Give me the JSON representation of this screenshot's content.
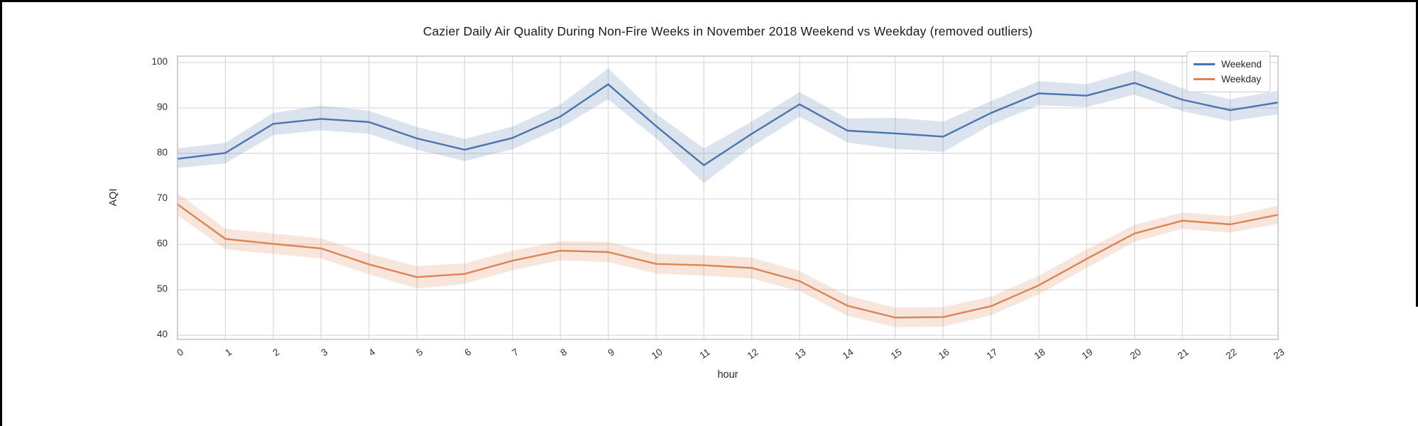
{
  "figure": {
    "background": "#ffffff",
    "frame_color": "#000000"
  },
  "chart_data": {
    "type": "line",
    "title": "Cazier Daily Air Quality During Non-Fire Weeks in November 2018 Weekend vs Weekday (removed outliers)",
    "xlabel": "hour",
    "ylabel": "AQI",
    "grid": true,
    "legend_position": "upper right",
    "x": [
      0,
      1,
      2,
      3,
      4,
      5,
      6,
      7,
      8,
      9,
      10,
      11,
      12,
      13,
      14,
      15,
      16,
      17,
      18,
      19,
      20,
      21,
      22,
      23
    ],
    "yticks": [
      40,
      50,
      60,
      70,
      80,
      90,
      100
    ],
    "ylim": [
      39.1,
      101.4
    ],
    "grid_color": "#dcdcdc",
    "box_color": "#c6c6c6",
    "band_opacity": 0.2,
    "series": [
      {
        "name": "Weekend",
        "color": "#4c72b0",
        "values": [
          78.8,
          80.1,
          86.5,
          87.6,
          86.9,
          83.3,
          80.8,
          83.4,
          88.1,
          95.2,
          86.0,
          77.4,
          84.3,
          90.8,
          85.0,
          84.4,
          83.7,
          88.9,
          93.2,
          92.7,
          95.5,
          91.8,
          89.5,
          91.2
        ],
        "band_low": [
          76.8,
          77.8,
          84.0,
          85.1,
          84.3,
          80.8,
          78.3,
          80.9,
          85.6,
          91.9,
          83.3,
          73.5,
          81.5,
          88.1,
          82.4,
          81.0,
          80.3,
          86.3,
          90.6,
          90.2,
          92.9,
          89.3,
          87.1,
          88.6
        ],
        "band_high": [
          81.1,
          82.3,
          88.9,
          90.5,
          89.4,
          85.8,
          83.2,
          85.9,
          90.7,
          98.7,
          88.7,
          81.1,
          87.0,
          93.5,
          87.7,
          87.8,
          87.0,
          91.5,
          95.9,
          95.2,
          98.3,
          94.3,
          91.9,
          93.8
        ]
      },
      {
        "name": "Weekday",
        "color": "#dd8452",
        "values": [
          68.8,
          61.2,
          60.1,
          59.1,
          55.6,
          52.8,
          53.5,
          56.4,
          58.6,
          58.3,
          55.7,
          55.4,
          54.8,
          51.9,
          46.5,
          43.9,
          44.0,
          46.4,
          51.0,
          56.8,
          62.4,
          65.2,
          64.4,
          66.5
        ],
        "band_low": [
          66.4,
          58.9,
          57.9,
          56.9,
          53.4,
          50.3,
          51.3,
          54.3,
          56.5,
          56.1,
          53.6,
          53.1,
          52.5,
          49.7,
          44.3,
          41.8,
          41.9,
          44.4,
          49.0,
          54.8,
          60.6,
          63.4,
          62.6,
          64.5
        ],
        "band_high": [
          71.3,
          63.4,
          62.4,
          61.3,
          57.9,
          55.2,
          55.8,
          58.6,
          60.7,
          60.5,
          57.9,
          57.6,
          57.1,
          54.1,
          48.7,
          46.1,
          46.2,
          48.5,
          53.1,
          58.9,
          64.3,
          67.0,
          66.2,
          68.5
        ]
      }
    ]
  }
}
